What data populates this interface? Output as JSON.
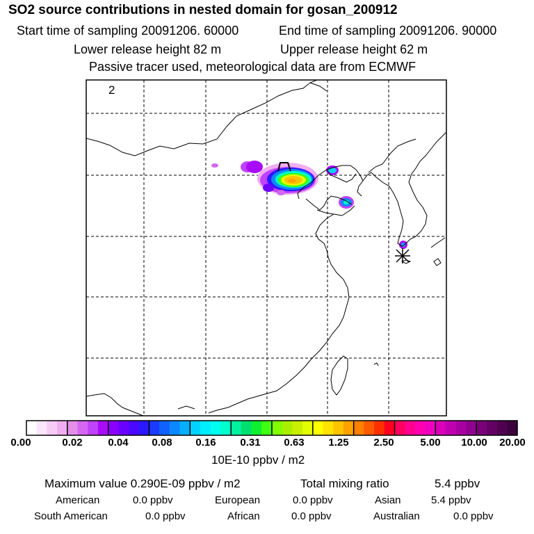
{
  "header": {
    "title": "SO2 source contributions in nested domain for gosan_200912",
    "start_time": "Start time of sampling 20091206. 60000",
    "end_time": "End time of sampling 20091206. 90000",
    "lower_release": "Lower release height   82 m",
    "upper_release": "Upper release height   62 m",
    "tracer_note": "Passive tracer used, meteorological data are from ECMWF"
  },
  "map": {
    "panel_number": "2",
    "receptor_marker": "star-receptor-gosan",
    "colors": {
      "coastline": "#000000",
      "grid": "#000000",
      "frame": "#000000"
    }
  },
  "colorbar": {
    "tick_labels": [
      "0.00",
      "0.02",
      "0.04",
      "0.08",
      "0.16",
      "0.31",
      "0.63",
      "1.25",
      "2.50",
      "5.00",
      "10.00",
      "20.00"
    ],
    "groups": [
      [
        "#ffffff",
        "#fbe5fb",
        "#f6cbf6",
        "#f0aef0"
      ],
      [
        "#e48ee8",
        "#d466f2",
        "#c042fb",
        "#a80cf9"
      ],
      [
        "#8a00ff",
        "#6a00ff",
        "#4a08ff",
        "#2a18ff"
      ],
      [
        "#1a3aff",
        "#1062ff",
        "#0c88ff",
        "#06aeff"
      ],
      [
        "#00d2ff",
        "#00ecff",
        "#00ffee",
        "#00ffcc"
      ],
      [
        "#00f0a0",
        "#00e070",
        "#10ee30",
        "#40ff10"
      ],
      [
        "#80ff00",
        "#a8f000",
        "#c8f000",
        "#e4ff00"
      ],
      [
        "#ffff00",
        "#ffe400",
        "#ffc400",
        "#ffa200"
      ],
      [
        "#ff8000",
        "#ff5a00",
        "#ff3000",
        "#ff0020"
      ],
      [
        "#ff0060",
        "#ff0090",
        "#ff00b0",
        "#f000c0"
      ],
      [
        "#d800b8",
        "#c000b0",
        "#a800a0",
        "#900090"
      ],
      [
        "#780078",
        "#640064",
        "#500050",
        "#3c003c"
      ]
    ],
    "unit": "10E-10 ppbv / m2"
  },
  "summary": {
    "max_value": "Maximum value  0.290E-09 ppbv / m2",
    "total_label": "Total mixing ratio",
    "total_value": "5.4 ppbv",
    "regions": [
      {
        "name": "American",
        "value": "0.0 ppbv"
      },
      {
        "name": "European",
        "value": "0.0 ppbv"
      },
      {
        "name": "Asian",
        "value": "5.4 ppbv"
      },
      {
        "name": "South American",
        "value": "0.0 ppbv"
      },
      {
        "name": "African",
        "value": "0.0 ppbv"
      },
      {
        "name": "Australian",
        "value": "0.0 ppbv"
      }
    ]
  }
}
